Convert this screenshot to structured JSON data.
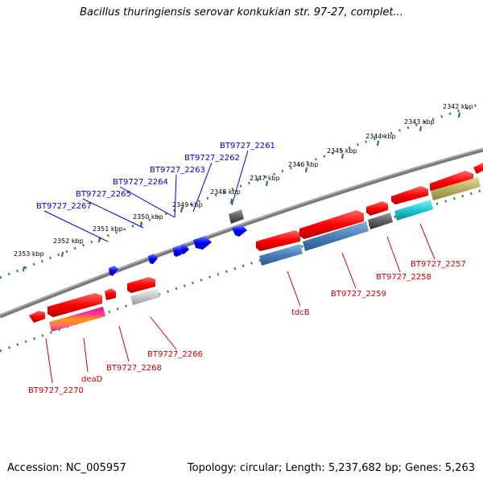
{
  "header": {
    "title": "Bacillus thuringiensis serovar konkukian str. 97-27, complet..."
  },
  "footer": {
    "accession": "Accession: NC_005957",
    "summary": "Topology: circular; Length: 5,237,682 bp; Genes: 5,263"
  },
  "scale_labels": [
    "2353 kbp",
    "2352 kbp",
    "2351 kbp",
    "2350 kbp",
    "2349 kbp",
    "2348 kbp",
    "2347 kbp",
    "2346 kbp",
    "2345 kbp",
    "2344 kbp",
    "2343 kbp",
    "2342 kbp"
  ],
  "genes_forward": [
    "BT9727_2267",
    "BT9727_2265",
    "BT9727_2264",
    "BT9727_2263",
    "BT9727_2262",
    "BT9727_2261"
  ],
  "genes_reverse": [
    "BT9727_2270",
    "deaD",
    "BT9727_2268",
    "BT9727_2266",
    "tdcB",
    "BT9727_2259",
    "BT9727_2258",
    "BT9727_2257"
  ],
  "colors": {
    "forward_label": "#0000cc",
    "reverse_label": "#cc0000",
    "backbone": "#7a7a7a",
    "ticks": "#2e8b2e"
  }
}
